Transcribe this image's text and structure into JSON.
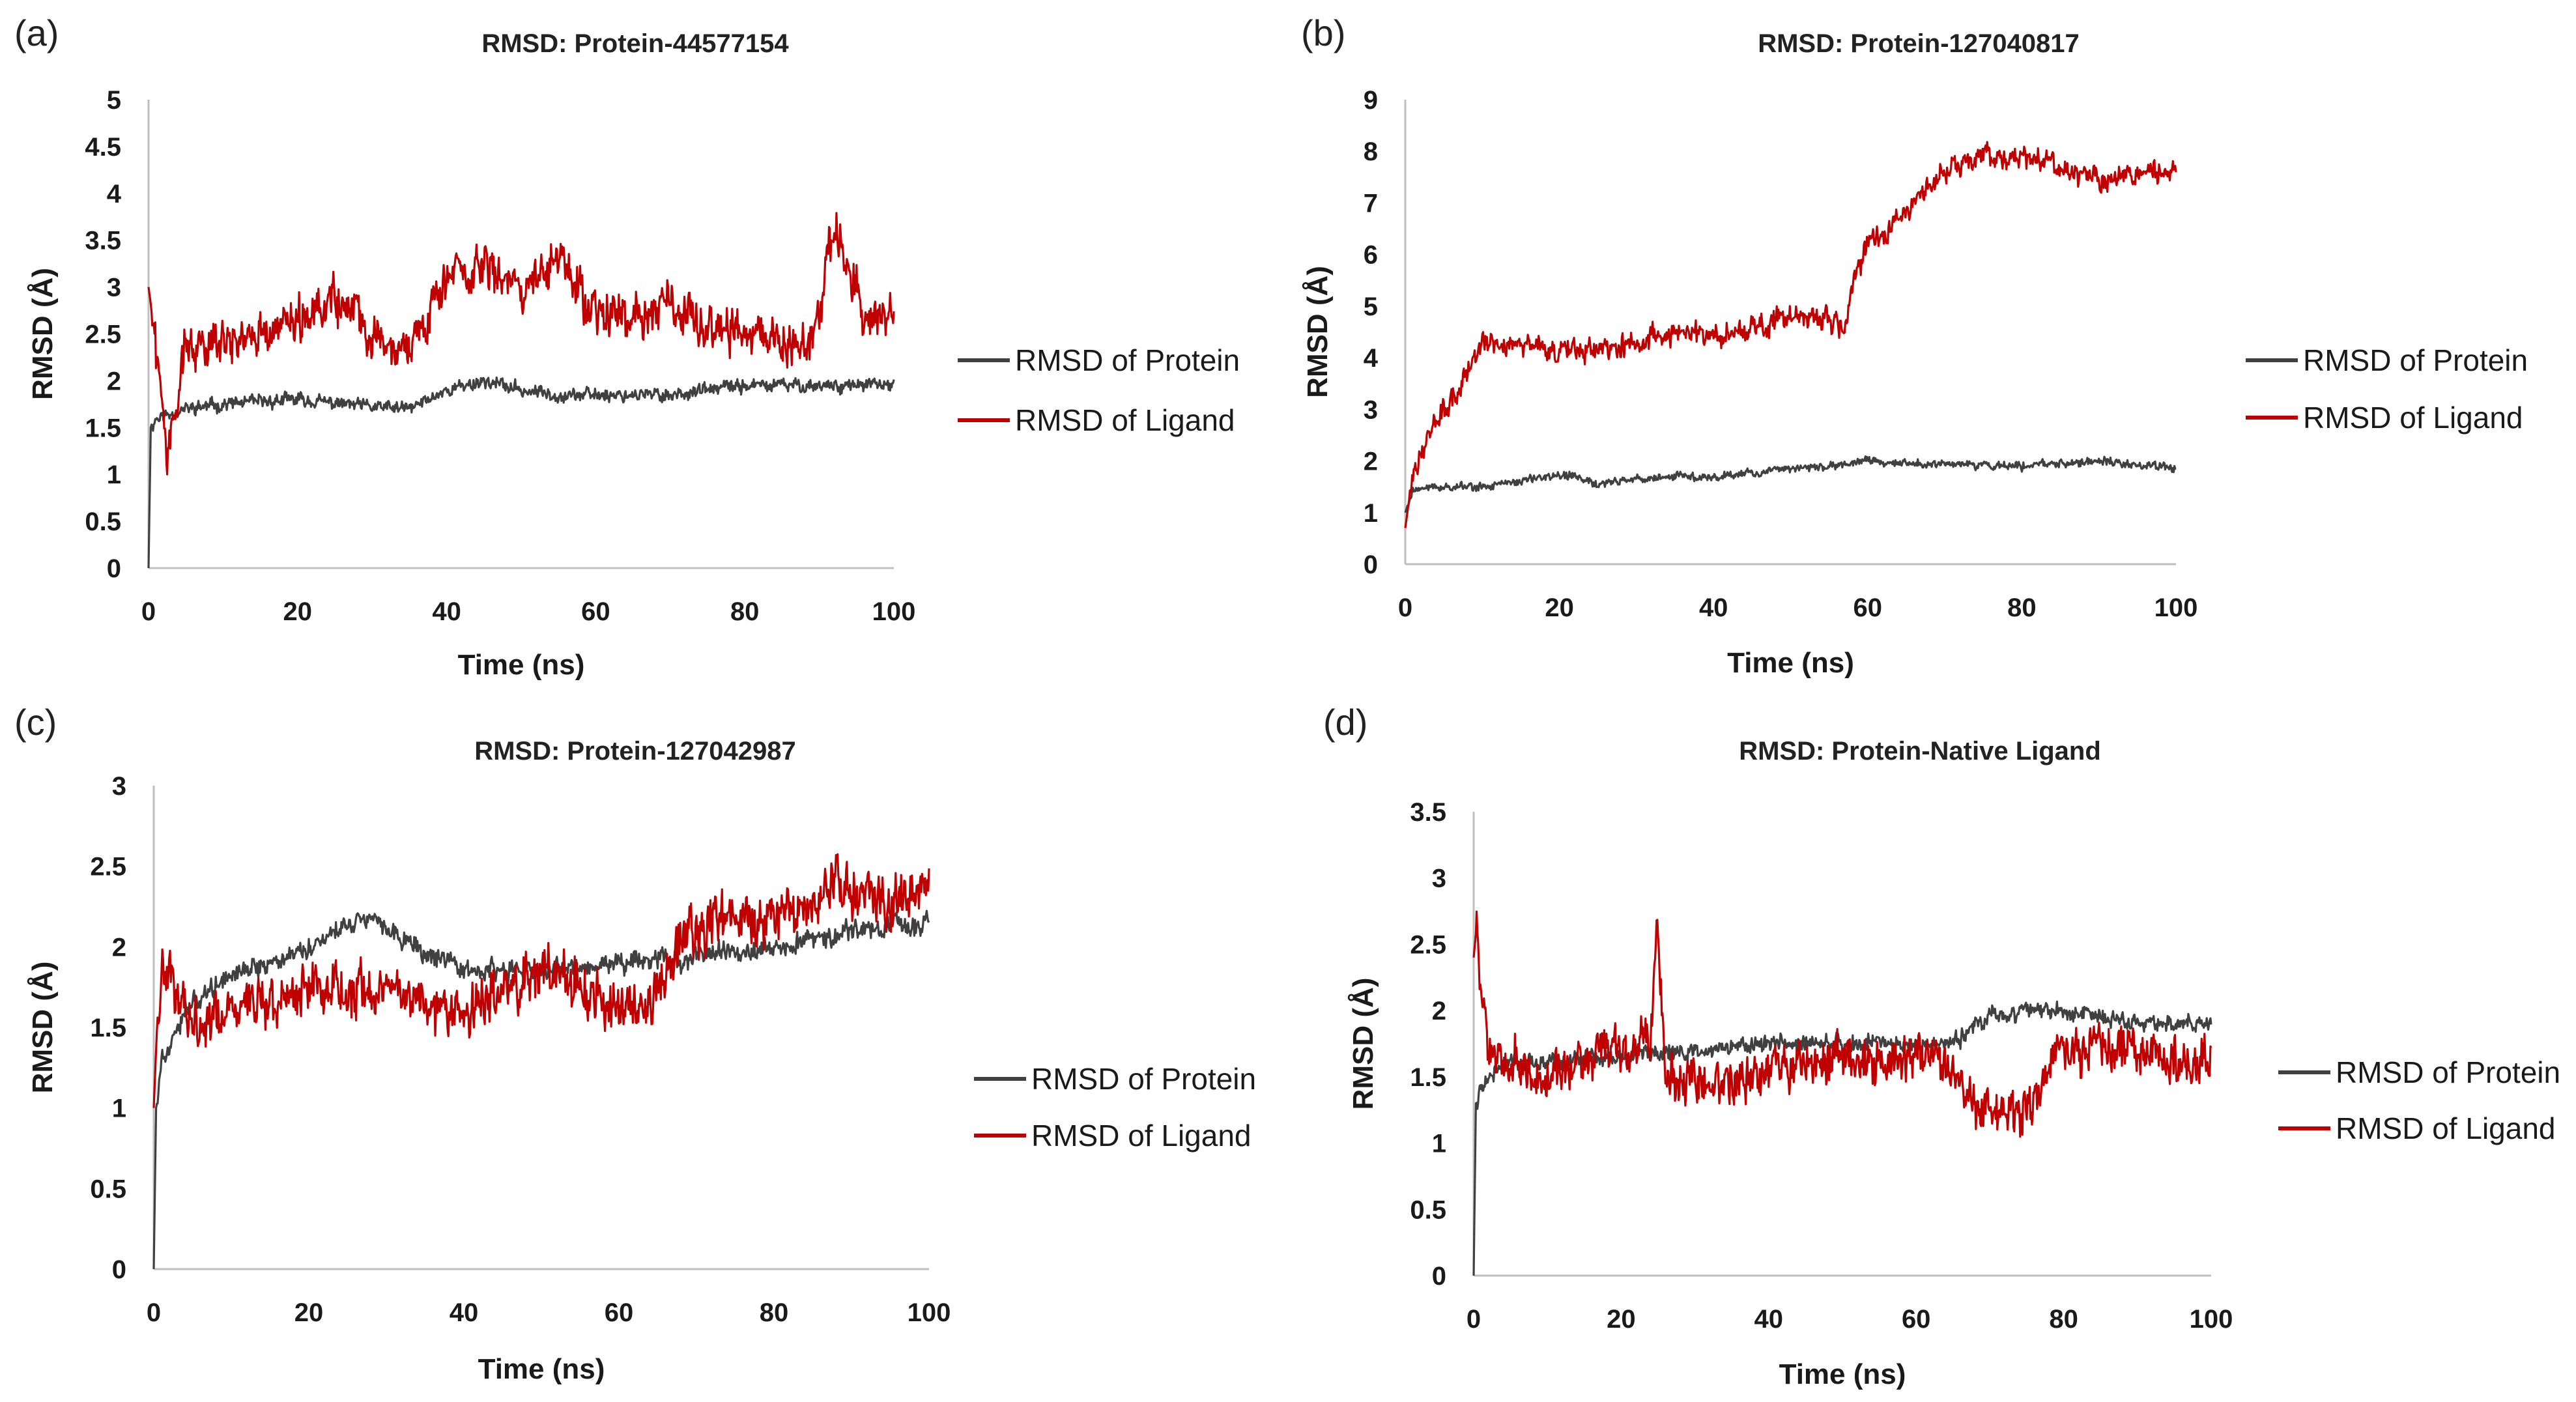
{
  "colors": {
    "protein": "#404040",
    "ligand": "#c00000",
    "axis": "#bfbfbf"
  },
  "chart_data": [
    {
      "type": "line",
      "panel_label": "(a)",
      "title": "RMSD: Protein-44577154",
      "xlabel": "Time (ns)",
      "ylabel": "RMSD (Å)",
      "xlim": [
        0,
        100
      ],
      "ylim": [
        0,
        5
      ],
      "xticks": [
        0,
        20,
        40,
        60,
        80,
        100
      ],
      "xtick_labels": [
        "0",
        "20",
        "40",
        "60",
        "80",
        "100"
      ],
      "yticks": [
        0,
        0.5,
        1,
        1.5,
        2,
        2.5,
        3,
        3.5,
        4,
        4.5,
        5
      ],
      "ytick_labels": [
        "0",
        "0.5",
        "1",
        "1.5",
        "2",
        "2.5",
        "3",
        "3.5",
        "4",
        "4.5",
        "5"
      ],
      "legend_position": "right",
      "series": [
        {
          "name": "RMSD of Protein",
          "color_key": "protein",
          "noise": 0.09,
          "x": [
            0,
            0.3,
            1,
            5,
            10,
            20,
            30,
            35,
            40,
            45,
            50,
            55,
            60,
            70,
            80,
            90,
            100
          ],
          "y": [
            0,
            1.5,
            1.6,
            1.7,
            1.75,
            1.8,
            1.72,
            1.7,
            1.9,
            2.0,
            1.9,
            1.85,
            1.85,
            1.85,
            1.95,
            1.95,
            1.95
          ]
        },
        {
          "name": "RMSD of Ligand",
          "color_key": "ligand",
          "noise": 0.3,
          "x": [
            0,
            0.5,
            1,
            2.5,
            5,
            10,
            15,
            20,
            25,
            30,
            35,
            40,
            45,
            50,
            55,
            60,
            65,
            70,
            75,
            80,
            85,
            88,
            90,
            92,
            94,
            96,
            100
          ],
          "y": [
            3.0,
            2.7,
            2.3,
            1.3,
            2.4,
            2.4,
            2.5,
            2.6,
            2.9,
            2.5,
            2.4,
            3.1,
            3.2,
            3.0,
            3.3,
            2.7,
            2.7,
            2.8,
            2.6,
            2.5,
            2.5,
            2.3,
            2.8,
            3.6,
            3.2,
            2.6,
            2.75
          ]
        }
      ],
      "annotations": []
    },
    {
      "type": "line",
      "panel_label": "(b)",
      "title": "RMSD:  Protein-127040817",
      "xlabel": "Time (ns)",
      "ylabel": "RMSD (Å)",
      "xlim": [
        0,
        100
      ],
      "ylim": [
        0,
        9
      ],
      "xticks": [
        0,
        20,
        40,
        60,
        80,
        100
      ],
      "xtick_labels": [
        "0",
        "20",
        "40",
        "60",
        "80",
        "100"
      ],
      "yticks": [
        0,
        1,
        2,
        3,
        4,
        5,
        6,
        7,
        8,
        9
      ],
      "ytick_labels": [
        "0",
        "1",
        "2",
        "3",
        "4",
        "5",
        "6",
        "7",
        "8",
        "9"
      ],
      "legend_position": "right",
      "series": [
        {
          "name": "RMSD of Protein",
          "color_key": "protein",
          "noise": 0.1,
          "x": [
            0,
            1,
            5,
            10,
            15,
            20,
            25,
            30,
            35,
            40,
            50,
            55,
            60,
            65,
            70,
            80,
            90,
            100
          ],
          "y": [
            1.0,
            1.45,
            1.5,
            1.5,
            1.6,
            1.75,
            1.55,
            1.65,
            1.7,
            1.7,
            1.85,
            1.9,
            2.0,
            1.95,
            1.95,
            1.9,
            2.0,
            1.85
          ]
        },
        {
          "name": "RMSD of Ligand",
          "color_key": "ligand",
          "noise": 0.28,
          "x": [
            0,
            1,
            3,
            5,
            8,
            10,
            15,
            20,
            25,
            30,
            35,
            40,
            45,
            50,
            55,
            57,
            58,
            60,
            62,
            65,
            68,
            70,
            75,
            80,
            85,
            90,
            95,
            100
          ],
          "y": [
            0.7,
            1.8,
            2.5,
            3.0,
            3.6,
            4.3,
            4.3,
            4.1,
            4.2,
            4.3,
            4.5,
            4.4,
            4.6,
            4.8,
            4.8,
            4.5,
            5.5,
            6.2,
            6.4,
            6.9,
            7.3,
            7.6,
            7.9,
            7.9,
            7.7,
            7.4,
            7.6,
            7.6
          ]
        }
      ],
      "annotations": []
    },
    {
      "type": "line",
      "panel_label": "(c)",
      "title": "RMSD: Protein-127042987",
      "xlabel": "Time (ns)",
      "ylabel": "RMSD (Å)",
      "xlim": [
        0,
        100
      ],
      "ylim": [
        0,
        3
      ],
      "xticks": [
        0,
        20,
        40,
        60,
        80,
        100
      ],
      "xtick_labels": [
        "0",
        "20",
        "40",
        "60",
        "80",
        "100"
      ],
      "yticks": [
        0,
        0.5,
        1,
        1.5,
        2,
        2.5,
        3
      ],
      "ytick_labels": [
        "0",
        "0.5",
        "1",
        "1.5",
        "2",
        "2.5",
        "3"
      ],
      "legend_position": "right",
      "series": [
        {
          "name": "RMSD of Protein",
          "color_key": "protein",
          "noise": 0.08,
          "x": [
            0,
            0.3,
            1,
            3,
            5,
            10,
            15,
            20,
            25,
            28,
            32,
            35,
            40,
            50,
            60,
            66,
            68,
            70,
            80,
            90,
            100
          ],
          "y": [
            0,
            1.0,
            1.3,
            1.5,
            1.65,
            1.85,
            1.9,
            2.0,
            2.15,
            2.2,
            2.05,
            1.95,
            1.85,
            1.85,
            1.9,
            1.95,
            1.9,
            1.95,
            2.0,
            2.1,
            2.15
          ]
        },
        {
          "name": "RMSD of Ligand",
          "color_key": "ligand",
          "noise": 0.2,
          "x": [
            0,
            0.5,
            1,
            3,
            5,
            10,
            15,
            20,
            25,
            30,
            35,
            40,
            45,
            50,
            55,
            60,
            64,
            67,
            68,
            70,
            75,
            80,
            85,
            88,
            90,
            95,
            100
          ],
          "y": [
            1.0,
            1.6,
            1.9,
            1.75,
            1.5,
            1.6,
            1.65,
            1.75,
            1.7,
            1.75,
            1.65,
            1.55,
            1.75,
            1.85,
            1.75,
            1.6,
            1.6,
            1.9,
            2.1,
            2.1,
            2.15,
            2.2,
            2.25,
            2.4,
            2.3,
            2.25,
            2.35
          ]
        }
      ],
      "annotations": []
    },
    {
      "type": "line",
      "panel_label": "(d)",
      "title": "RMSD: Protein-Native Ligand",
      "xlabel": "Time (ns)",
      "ylabel": "RMSD (Å)",
      "xlim": [
        0,
        100
      ],
      "ylim": [
        0,
        3.5
      ],
      "xticks": [
        0,
        20,
        40,
        60,
        80,
        100
      ],
      "xtick_labels": [
        "0",
        "20",
        "40",
        "60",
        "80",
        "100"
      ],
      "yticks": [
        0,
        0.5,
        1,
        1.5,
        2,
        2.5,
        3,
        3.5
      ],
      "ytick_labels": [
        "0",
        "0.5",
        "1",
        "1.5",
        "2",
        "2.5",
        "3",
        "3.5"
      ],
      "legend_position": "right",
      "series": [
        {
          "name": "RMSD of Protein",
          "color_key": "protein",
          "noise": 0.08,
          "x": [
            0,
            0.3,
            1,
            3,
            5,
            10,
            20,
            30,
            40,
            50,
            60,
            65,
            68,
            70,
            75,
            80,
            85,
            90,
            100
          ],
          "y": [
            0,
            1.3,
            1.4,
            1.55,
            1.6,
            1.6,
            1.65,
            1.7,
            1.75,
            1.75,
            1.75,
            1.75,
            1.9,
            1.95,
            2.0,
            2.0,
            1.95,
            1.9,
            1.9
          ]
        },
        {
          "name": "RMSD of Ligand",
          "color_key": "ligand",
          "noise": 0.22,
          "x": [
            0,
            0.5,
            1,
            2,
            5,
            10,
            15,
            20,
            24,
            25,
            26,
            30,
            35,
            40,
            45,
            50,
            55,
            60,
            65,
            67,
            70,
            75,
            78,
            80,
            85,
            90,
            95,
            100
          ],
          "y": [
            2.4,
            2.7,
            2.1,
            1.7,
            1.6,
            1.55,
            1.65,
            1.7,
            1.75,
            2.6,
            1.5,
            1.45,
            1.45,
            1.55,
            1.6,
            1.65,
            1.6,
            1.65,
            1.6,
            1.3,
            1.25,
            1.2,
            1.55,
            1.7,
            1.75,
            1.65,
            1.6,
            1.6
          ]
        }
      ],
      "annotations": []
    }
  ]
}
